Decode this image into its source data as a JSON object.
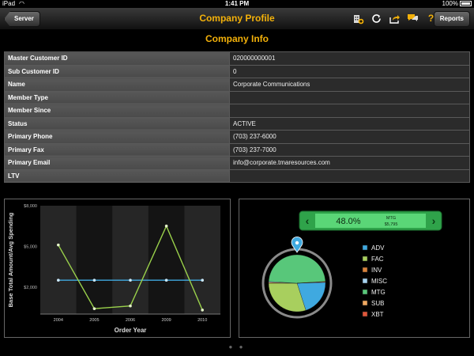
{
  "status_bar": {
    "carrier": "iPad",
    "time": "1:41 PM",
    "battery": "100%"
  },
  "nav": {
    "back_label": "Server",
    "title": "Company Profile",
    "reports_label": "Reports",
    "icons": [
      "building-add-icon",
      "refresh-icon",
      "share-icon",
      "chat-icon",
      "help-icon"
    ],
    "accent_color": "#f3b10a"
  },
  "section_title": "Company Info",
  "info_rows": [
    {
      "label": "Master Customer ID",
      "value": "020000000001"
    },
    {
      "label": "Sub Customer ID",
      "value": "0"
    },
    {
      "label": "Name",
      "value": "Corporate Communications"
    },
    {
      "label": "Member Type",
      "value": ""
    },
    {
      "label": "Member Since",
      "value": ""
    },
    {
      "label": "Status",
      "value": "ACTIVE"
    },
    {
      "label": "Primary Phone",
      "value": "(703) 237-6000"
    },
    {
      "label": "Primary Fax",
      "value": "(703) 237-7000"
    },
    {
      "label": "Primary Email",
      "value": "info@corporate.tmaresources.com"
    },
    {
      "label": "LTV",
      "value": ""
    }
  ],
  "chart_data": [
    {
      "type": "line",
      "xlabel": "Order Year",
      "ylabel": "Base Total Amount/Avg Spending",
      "categories": [
        "2004",
        "2005",
        "2006",
        "2009",
        "2010"
      ],
      "y_ticks": [
        "$2,000",
        "$5,000",
        "$8,000"
      ],
      "ylim": [
        0,
        8000
      ],
      "series": [
        {
          "name": "",
          "color": "#9ad14b",
          "values": [
            5100,
            400,
            600,
            6500,
            300
          ]
        },
        {
          "name": "",
          "color": "#3fa9e0",
          "values": [
            2500,
            2500,
            2500,
            2500,
            2500
          ]
        }
      ],
      "grid": "alternating vertical bands"
    },
    {
      "type": "pie",
      "selected": {
        "percent": "48.0%",
        "name": "MTG",
        "amount": "$5,795"
      },
      "legend_position": "right",
      "slices": [
        {
          "name": "ADV",
          "value": 20.5,
          "color": "#3fa9e0"
        },
        {
          "name": "FAC",
          "value": 30.0,
          "color": "#a8cf5e"
        },
        {
          "name": "INV",
          "value": 0.5,
          "color": "#d9823b"
        },
        {
          "name": "MISC",
          "value": 0.5,
          "color": "#a6d3f0"
        },
        {
          "name": "MTG",
          "value": 48.0,
          "color": "#58c77a"
        },
        {
          "name": "SUB",
          "value": 0.3,
          "color": "#f0a860"
        },
        {
          "name": "XBT",
          "value": 0.2,
          "color": "#e0563b"
        }
      ]
    }
  ],
  "pager_dots": "● ●"
}
